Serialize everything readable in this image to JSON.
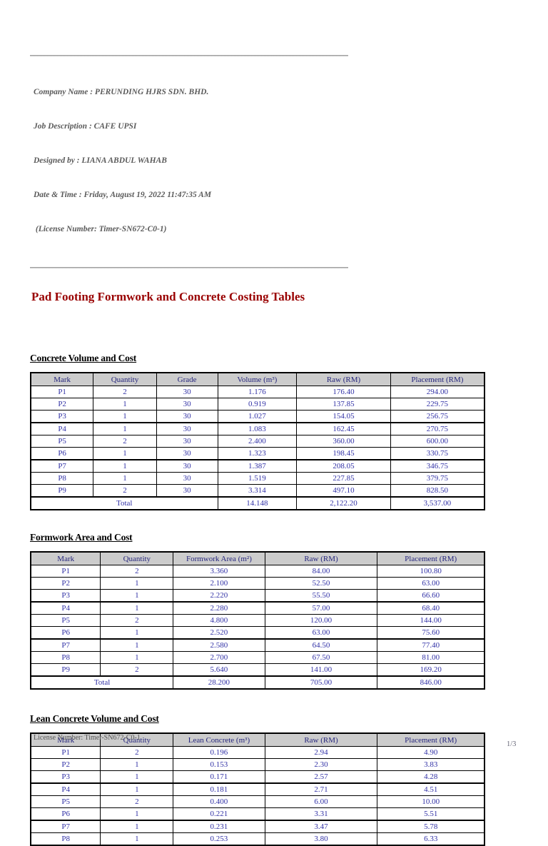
{
  "header_meta": {
    "lines": [
      "Company Name : PERUNDING HJRS SDN. BHD.",
      "Job Description : CAFE UPSI",
      "Designed by : LIANA ABDUL WAHAB",
      "Date & Time : Friday, August 19, 2022 11:47:35 AM",
      " (License Number: Timer-SN672-C0-1)"
    ]
  },
  "title": "Pad Footing Formwork and Concrete Costing Tables",
  "colors": {
    "title": "#990000",
    "table_header_bg": "#cccccc",
    "table_header_text": "#26267d",
    "table_data_text": "#3131a6",
    "meta_text": "#5a5a5a",
    "border": "#000000"
  },
  "tables": [
    {
      "heading": "Concrete Volume and Cost",
      "columns": [
        "Mark",
        "Quantity",
        "Grade",
        "Volume (m³)",
        "Raw (RM)",
        "Placement (RM)"
      ],
      "rows": [
        [
          "P1",
          "2",
          "30",
          "1.176",
          "176.40",
          "294.00"
        ],
        [
          "P2",
          "1",
          "30",
          "0.919",
          "137.85",
          "229.75"
        ],
        [
          "P3",
          "1",
          "30",
          "1.027",
          "154.05",
          "256.75"
        ],
        [
          "P4",
          "1",
          "30",
          "1.083",
          "162.45",
          "270.75"
        ],
        [
          "P5",
          "2",
          "30",
          "2.400",
          "360.00",
          "600.00"
        ],
        [
          "P6",
          "1",
          "30",
          "1.323",
          "198.45",
          "330.75"
        ],
        [
          "P7",
          "1",
          "30",
          "1.387",
          "208.05",
          "346.75"
        ],
        [
          "P8",
          "1",
          "30",
          "1.519",
          "227.85",
          "379.75"
        ],
        [
          "P9",
          "2",
          "30",
          "3.314",
          "497.10",
          "828.50"
        ]
      ],
      "total": {
        "label": "Total",
        "label_span": 3,
        "values": [
          "14.148",
          "2,122.20",
          "3,537.00"
        ]
      }
    },
    {
      "heading": "Formwork Area and Cost",
      "columns": [
        "Mark",
        "Quantity",
        "Formwork Area (m²)",
        "Raw (RM)",
        "Placement (RM)"
      ],
      "rows": [
        [
          "P1",
          "2",
          "3.360",
          "84.00",
          "100.80"
        ],
        [
          "P2",
          "1",
          "2.100",
          "52.50",
          "63.00"
        ],
        [
          "P3",
          "1",
          "2.220",
          "55.50",
          "66.60"
        ],
        [
          "P4",
          "1",
          "2.280",
          "57.00",
          "68.40"
        ],
        [
          "P5",
          "2",
          "4.800",
          "120.00",
          "144.00"
        ],
        [
          "P6",
          "1",
          "2.520",
          "63.00",
          "75.60"
        ],
        [
          "P7",
          "1",
          "2.580",
          "64.50",
          "77.40"
        ],
        [
          "P8",
          "1",
          "2.700",
          "67.50",
          "81.00"
        ],
        [
          "P9",
          "2",
          "5.640",
          "141.00",
          "169.20"
        ]
      ],
      "total": {
        "label": "Total",
        "label_span": 2,
        "values": [
          "28.200",
          "705.00",
          "846.00"
        ]
      }
    },
    {
      "heading": "Lean Concrete Volume and Cost",
      "columns": [
        "Mark",
        "Quantity",
        "Lean Concrete (m³)",
        "Raw (RM)",
        "Placement (RM)"
      ],
      "rows": [
        [
          "P1",
          "2",
          "0.196",
          "2.94",
          "4.90"
        ],
        [
          "P2",
          "1",
          "0.153",
          "2.30",
          "3.83"
        ],
        [
          "P3",
          "1",
          "0.171",
          "2.57",
          "4.28"
        ],
        [
          "P4",
          "1",
          "0.181",
          "2.71",
          "4.51"
        ],
        [
          "P5",
          "2",
          "0.400",
          "6.00",
          "10.00"
        ],
        [
          "P6",
          "1",
          "0.221",
          "3.31",
          "5.51"
        ],
        [
          "P7",
          "1",
          "0.231",
          "3.47",
          "5.78"
        ],
        [
          "P8",
          "1",
          "0.253",
          "3.80",
          "6.33"
        ]
      ],
      "total": null
    }
  ],
  "footer": {
    "license": "License Number: Timer-SN672-C0-1",
    "page_indicator": "1/3"
  }
}
